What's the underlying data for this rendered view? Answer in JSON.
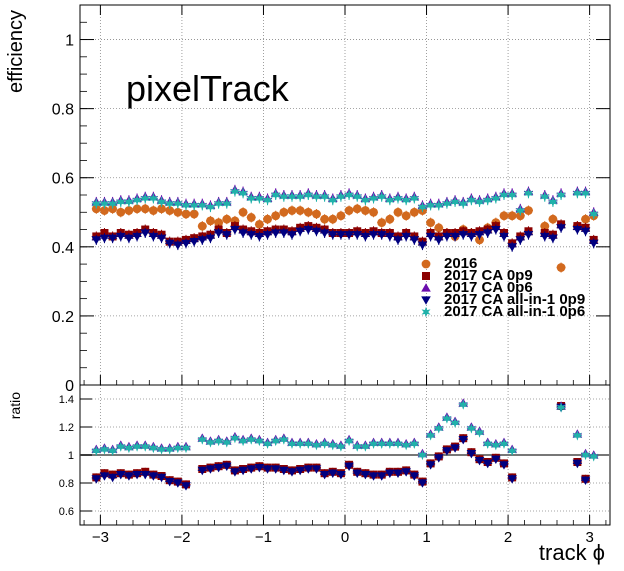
{
  "chart_data": {
    "type": "scatter",
    "xlabel": "track ϕ",
    "annotation": "pixelTrack",
    "x_ticks": [
      "−3",
      "−2",
      "−1",
      "0",
      "1",
      "2",
      "3"
    ],
    "grid": true,
    "legend_position": "right-middle",
    "upper": {
      "ylabel": "efficiency",
      "ylim": [
        0,
        1.1
      ],
      "xlim": [
        -3.25,
        3.25
      ],
      "y_ticks": [
        "0",
        "0.2",
        "0.4",
        "0.6",
        "0.8",
        "1"
      ],
      "x": [
        -3.05,
        -2.95,
        -2.85,
        -2.75,
        -2.65,
        -2.55,
        -2.45,
        -2.35,
        -2.25,
        -2.15,
        -2.05,
        -1.95,
        -1.85,
        -1.75,
        -1.65,
        -1.55,
        -1.45,
        -1.35,
        -1.25,
        -1.15,
        -1.05,
        -0.95,
        -0.85,
        -0.75,
        -0.65,
        -0.55,
        -0.45,
        -0.35,
        -0.25,
        -0.15,
        -0.05,
        0.05,
        0.15,
        0.25,
        0.35,
        0.45,
        0.55,
        0.65,
        0.75,
        0.85,
        0.95,
        1.05,
        1.15,
        1.25,
        1.35,
        1.45,
        1.55,
        1.65,
        1.75,
        1.85,
        1.95,
        2.05,
        2.15,
        2.25,
        2.35,
        2.45,
        2.55,
        2.65,
        2.75,
        2.85,
        2.95,
        3.05
      ],
      "series": [
        {
          "name": "2016",
          "color": "#d2691e",
          "marker": "circle",
          "values": [
            0.51,
            0.505,
            0.51,
            0.5,
            0.505,
            0.51,
            0.51,
            0.505,
            0.51,
            0.505,
            0.5,
            0.495,
            0.495,
            0.46,
            0.475,
            0.47,
            0.48,
            0.475,
            0.5,
            0.485,
            0.465,
            0.48,
            0.49,
            0.5,
            0.505,
            0.505,
            0.5,
            0.495,
            0.48,
            0.48,
            0.49,
            0.505,
            0.51,
            0.505,
            0.5,
            0.47,
            0.48,
            0.5,
            0.49,
            0.5,
            0.505,
            0.47,
            0.455,
            0.44,
            0.43,
            0.45,
            0.44,
            0.42,
            0.455,
            0.47,
            0.49,
            0.49,
            0.49,
            0.505,
            null,
            0.46,
            0.48,
            0.34,
            null,
            0.46,
            0.48,
            0.49
          ]
        },
        {
          "name": "2017 CA 0p9",
          "color": "#8b0000",
          "marker": "square",
          "values": [
            0.43,
            0.44,
            0.43,
            0.44,
            0.435,
            0.44,
            0.45,
            0.44,
            0.435,
            0.415,
            0.415,
            0.42,
            0.425,
            0.43,
            0.435,
            0.45,
            0.44,
            0.46,
            0.45,
            0.445,
            0.44,
            0.445,
            0.45,
            0.45,
            0.445,
            0.455,
            0.46,
            0.455,
            0.45,
            0.44,
            0.44,
            0.44,
            0.445,
            0.44,
            0.445,
            0.44,
            0.44,
            0.43,
            0.44,
            0.43,
            0.415,
            0.44,
            0.43,
            0.44,
            0.44,
            0.445,
            0.44,
            0.445,
            0.45,
            0.46,
            0.44,
            0.41,
            0.43,
            0.445,
            null,
            0.44,
            0.435,
            0.465,
            null,
            0.46,
            0.455,
            0.42
          ]
        },
        {
          "name": "2017 CA 0p6",
          "color": "#6a0dad",
          "marker": "triangle-up",
          "values": [
            0.53,
            0.53,
            0.53,
            0.535,
            0.535,
            0.54,
            0.545,
            0.545,
            0.535,
            0.53,
            0.53,
            0.525,
            0.525,
            0.525,
            0.52,
            0.53,
            0.53,
            0.565,
            0.56,
            0.545,
            0.545,
            0.54,
            0.555,
            0.55,
            0.55,
            0.55,
            0.555,
            0.55,
            0.55,
            0.54,
            0.55,
            0.555,
            0.55,
            0.54,
            0.545,
            0.55,
            0.54,
            0.545,
            0.54,
            0.545,
            0.52,
            0.525,
            0.525,
            0.53,
            0.535,
            0.53,
            0.54,
            0.535,
            0.54,
            0.545,
            0.555,
            0.555,
            0.51,
            0.56,
            null,
            0.55,
            0.535,
            0.555,
            null,
            0.56,
            0.56,
            0.5
          ]
        },
        {
          "name": "2017 CA all-in-1 0p9",
          "color": "#000080",
          "marker": "triangle-down",
          "values": [
            0.42,
            0.425,
            0.425,
            0.43,
            0.425,
            0.43,
            0.44,
            0.43,
            0.425,
            0.41,
            0.405,
            0.41,
            0.415,
            0.42,
            0.425,
            0.44,
            0.435,
            0.45,
            0.44,
            0.435,
            0.43,
            0.435,
            0.44,
            0.44,
            0.435,
            0.445,
            0.45,
            0.445,
            0.44,
            0.435,
            0.435,
            0.435,
            0.435,
            0.43,
            0.435,
            0.435,
            0.43,
            0.42,
            0.43,
            0.42,
            0.405,
            0.43,
            0.42,
            0.43,
            0.43,
            0.435,
            0.43,
            0.435,
            0.44,
            0.45,
            0.43,
            0.4,
            0.42,
            0.435,
            null,
            0.43,
            0.425,
            0.455,
            null,
            0.45,
            0.445,
            0.41
          ]
        },
        {
          "name": "2017 CA all-in-1 0p6",
          "color": "#20b2aa",
          "marker": "star",
          "values": [
            0.525,
            0.525,
            0.525,
            0.53,
            0.53,
            0.535,
            0.54,
            0.54,
            0.53,
            0.525,
            0.525,
            0.52,
            0.52,
            0.52,
            0.515,
            0.525,
            0.525,
            0.56,
            0.555,
            0.54,
            0.54,
            0.535,
            0.55,
            0.545,
            0.545,
            0.545,
            0.55,
            0.545,
            0.545,
            0.535,
            0.545,
            0.55,
            0.545,
            0.535,
            0.54,
            0.545,
            0.535,
            0.54,
            0.535,
            0.54,
            0.515,
            0.52,
            0.52,
            0.525,
            0.53,
            0.525,
            0.535,
            0.53,
            0.535,
            0.54,
            0.55,
            0.55,
            0.505,
            0.555,
            null,
            0.545,
            0.53,
            0.55,
            null,
            0.555,
            0.555,
            0.495
          ]
        }
      ]
    },
    "lower": {
      "ylabel": "ratio",
      "ylim": [
        0.5,
        1.5
      ],
      "xlim": [
        -3.25,
        3.25
      ],
      "y_ticks": [
        "0.6",
        "0.8",
        "1",
        "1.2",
        "1.4"
      ],
      "reference_line": 1,
      "x": [
        -3.05,
        -2.95,
        -2.85,
        -2.75,
        -2.65,
        -2.55,
        -2.45,
        -2.35,
        -2.25,
        -2.15,
        -2.05,
        -1.95,
        -1.85,
        -1.75,
        -1.65,
        -1.55,
        -1.45,
        -1.35,
        -1.25,
        -1.15,
        -1.05,
        -0.95,
        -0.85,
        -0.75,
        -0.65,
        -0.55,
        -0.45,
        -0.35,
        -0.25,
        -0.15,
        -0.05,
        0.05,
        0.15,
        0.25,
        0.35,
        0.45,
        0.55,
        0.65,
        0.75,
        0.85,
        0.95,
        1.05,
        1.15,
        1.25,
        1.35,
        1.45,
        1.55,
        1.65,
        1.75,
        1.85,
        1.95,
        2.05,
        2.15,
        2.25,
        2.35,
        2.45,
        2.55,
        2.65,
        2.75,
        2.85,
        2.95,
        3.05
      ],
      "series": [
        {
          "name": "2017 CA 0p9",
          "color": "#8b0000",
          "marker": "square",
          "values": [
            0.84,
            0.87,
            0.86,
            0.87,
            0.86,
            0.87,
            0.88,
            0.86,
            0.85,
            0.82,
            0.81,
            0.79,
            null,
            0.9,
            0.91,
            0.92,
            0.93,
            0.89,
            0.9,
            0.91,
            0.92,
            0.91,
            0.91,
            0.9,
            0.89,
            0.9,
            0.91,
            0.91,
            0.87,
            0.88,
            0.87,
            0.93,
            0.88,
            0.87,
            0.86,
            0.86,
            0.88,
            0.88,
            0.89,
            0.86,
            0.81,
            0.94,
            0.99,
            1.04,
            1.06,
            1.12,
            1.02,
            0.97,
            0.95,
            0.98,
            0.94,
            0.84,
            null,
            null,
            null,
            null,
            null,
            1.35,
            null,
            0.95,
            0.83,
            null
          ]
        },
        {
          "name": "2017 CA 0p6",
          "color": "#6a0dad",
          "marker": "triangle-up",
          "values": [
            1.04,
            1.05,
            1.04,
            1.07,
            1.06,
            1.07,
            1.07,
            1.06,
            1.05,
            1.05,
            1.06,
            1.06,
            null,
            1.12,
            1.1,
            1.11,
            1.1,
            1.13,
            1.11,
            1.12,
            1.11,
            1.09,
            1.11,
            1.12,
            1.09,
            1.09,
            1.09,
            1.08,
            1.09,
            1.08,
            1.07,
            1.11,
            1.07,
            1.07,
            1.09,
            1.09,
            1.09,
            1.09,
            1.08,
            1.09,
            1.01,
            1.15,
            1.2,
            1.27,
            1.24,
            1.37,
            1.2,
            1.17,
            1.09,
            1.08,
            1.09,
            1.04,
            null,
            null,
            null,
            null,
            null,
            1.35,
            null,
            1.15,
            1.01,
            1.0
          ]
        },
        {
          "name": "2017 CA all-in-1 0p9",
          "color": "#000080",
          "marker": "triangle-down",
          "values": [
            0.83,
            0.85,
            0.84,
            0.86,
            0.85,
            0.86,
            0.86,
            0.85,
            0.84,
            0.81,
            0.8,
            0.78,
            null,
            0.89,
            0.9,
            0.91,
            0.92,
            0.88,
            0.89,
            0.9,
            0.91,
            0.9,
            0.9,
            0.89,
            0.88,
            0.89,
            0.9,
            0.9,
            0.86,
            0.87,
            0.86,
            0.92,
            0.87,
            0.86,
            0.85,
            0.85,
            0.87,
            0.87,
            0.88,
            0.85,
            0.8,
            0.93,
            0.98,
            1.03,
            1.05,
            1.11,
            1.01,
            0.96,
            0.94,
            0.97,
            0.93,
            0.83,
            null,
            null,
            null,
            null,
            null,
            1.34,
            null,
            0.94,
            0.82,
            null
          ]
        },
        {
          "name": "2017 CA all-in-1 0p6",
          "color": "#20b2aa",
          "marker": "star",
          "values": [
            1.03,
            1.04,
            1.03,
            1.06,
            1.05,
            1.06,
            1.06,
            1.05,
            1.04,
            1.04,
            1.05,
            1.05,
            null,
            1.11,
            1.09,
            1.1,
            1.09,
            1.12,
            1.1,
            1.11,
            1.1,
            1.08,
            1.1,
            1.11,
            1.08,
            1.08,
            1.08,
            1.07,
            1.08,
            1.07,
            1.06,
            1.1,
            1.06,
            1.06,
            1.08,
            1.08,
            1.08,
            1.08,
            1.07,
            1.08,
            1.0,
            1.14,
            1.19,
            1.26,
            1.23,
            1.36,
            1.19,
            1.16,
            1.08,
            1.07,
            1.08,
            1.03,
            null,
            null,
            null,
            null,
            null,
            1.34,
            null,
            1.14,
            1.0,
            0.99
          ]
        }
      ]
    }
  }
}
